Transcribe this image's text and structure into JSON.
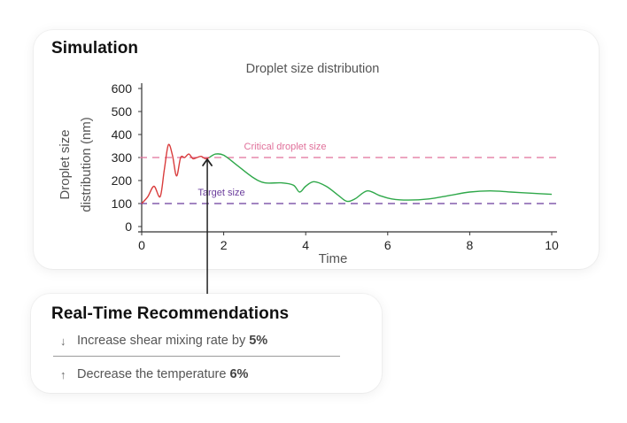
{
  "simulation": {
    "title": "Simulation"
  },
  "chart_data": {
    "type": "line",
    "title": "Droplet size distribution",
    "xlabel": "Time",
    "ylabel_lines": [
      "Droplet size",
      "distribution (nm)"
    ],
    "xlim": [
      0,
      10
    ],
    "ylim": [
      0,
      600
    ],
    "x_ticks": [
      0,
      2,
      4,
      6,
      8,
      10
    ],
    "y_ticks": [
      0,
      100,
      200,
      300,
      400,
      500,
      600
    ],
    "grid": false,
    "reference_lines": [
      {
        "label": "Critical droplet size",
        "y": 300,
        "color": "#e0709a"
      },
      {
        "label": "Target size",
        "y": 100,
        "color": "#6a3c9c"
      }
    ],
    "series": [
      {
        "color": "#d93c3c",
        "x": [
          0,
          0.15,
          0.3,
          0.45,
          0.55,
          0.65,
          0.75,
          0.85,
          0.95,
          1.05,
          1.15,
          1.25,
          1.35,
          1.45,
          1.55,
          1.65
        ],
        "y": [
          100,
          130,
          175,
          130,
          245,
          355,
          310,
          220,
          300,
          300,
          315,
          295,
          300,
          305,
          295,
          300
        ]
      },
      {
        "color": "#2fa84a",
        "x": [
          1.65,
          1.8,
          2.0,
          2.3,
          2.7,
          3.0,
          3.4,
          3.7,
          3.85,
          4.0,
          4.2,
          4.5,
          4.8,
          5.0,
          5.2,
          5.5,
          5.8,
          6.1,
          6.5,
          7.0,
          7.5,
          8.0,
          8.5,
          9.0,
          9.5,
          10.0
        ],
        "y": [
          300,
          315,
          310,
          270,
          215,
          190,
          190,
          180,
          150,
          175,
          195,
          175,
          135,
          110,
          120,
          155,
          135,
          120,
          115,
          120,
          135,
          150,
          155,
          150,
          145,
          140
        ]
      }
    ],
    "annotation_x": 1.6
  },
  "recommendations": {
    "title": "Real-Time Recommendations",
    "items": [
      {
        "arrow": "↓",
        "text": "Increase shear mixing rate by",
        "value": "5%"
      },
      {
        "arrow": "↑",
        "text": "Decrease the temperature",
        "value": "6%"
      }
    ]
  }
}
